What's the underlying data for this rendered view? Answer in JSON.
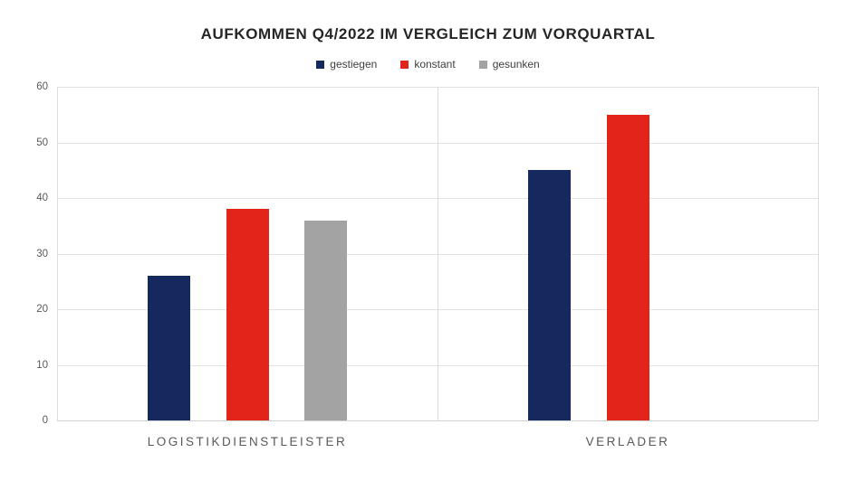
{
  "chart_data": {
    "type": "bar",
    "title": "AUFKOMMEN Q4/2022 IM VERGLEICH ZUM VORQUARTAL",
    "categories": [
      "LOGISTIKDIENSTLEISTER",
      "VERLADER"
    ],
    "series": [
      {
        "name": "gestiegen",
        "color": "#16295f",
        "values": [
          26,
          45
        ]
      },
      {
        "name": "konstant",
        "color": "#e2241b",
        "values": [
          38,
          55
        ]
      },
      {
        "name": "gesunken",
        "color": "#a3a3a3",
        "values": [
          36,
          null
        ]
      }
    ],
    "xlabel": "",
    "ylabel": "",
    "ylim": [
      0,
      60
    ],
    "ytick_step": 10,
    "ytick_labels": [
      "0",
      "10",
      "20",
      "30",
      "40",
      "50",
      "60"
    ],
    "grid": "horizontal",
    "legend_position": "top"
  },
  "colors": {
    "background": "#ffffff",
    "title_text": "#262626",
    "legend_text": "#404040",
    "tick_text": "#595959",
    "category_text": "#595959",
    "gridline": "#e2e2e2",
    "axis_line": "#d0d0d0"
  }
}
